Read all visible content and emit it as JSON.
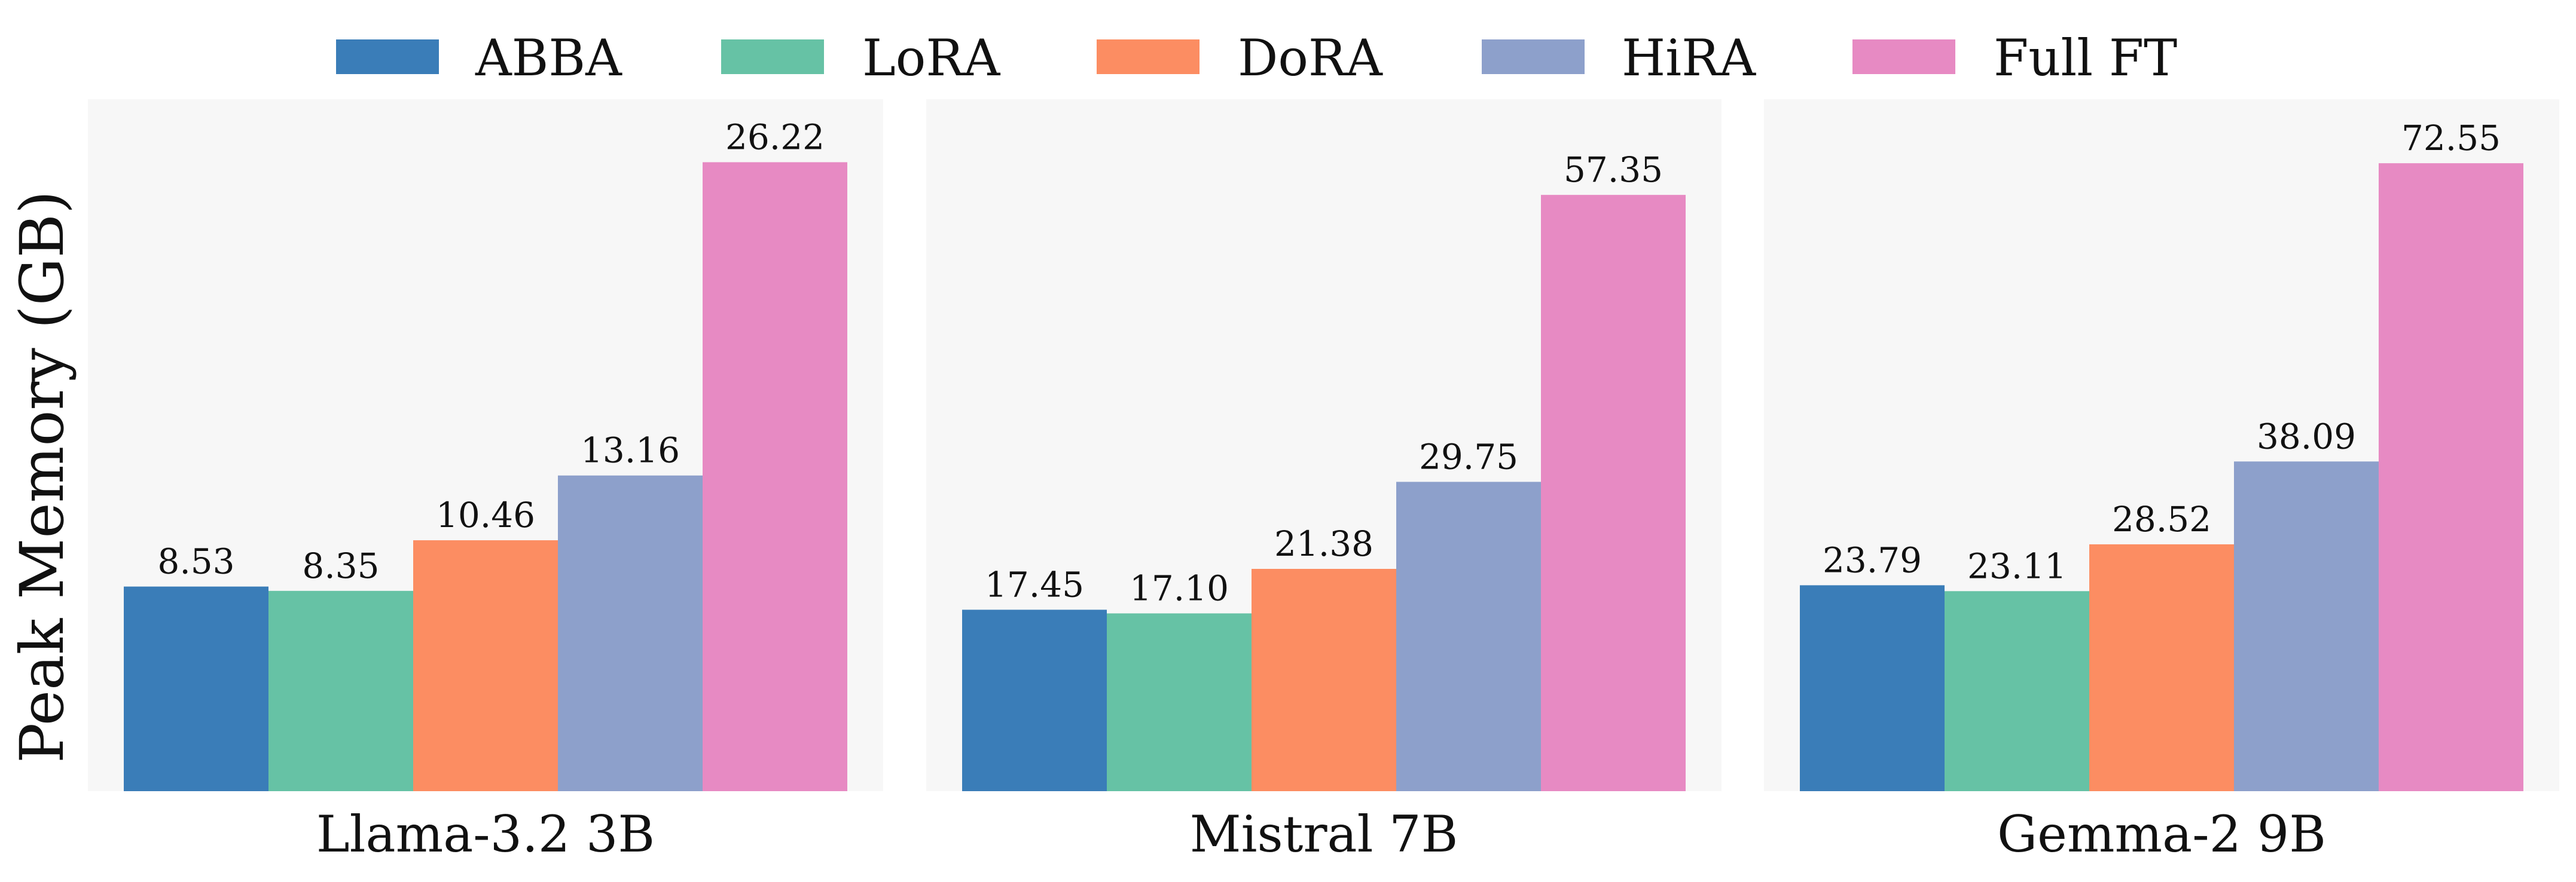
{
  "chart_data": [
    {
      "type": "bar",
      "xlabel": "Llama-3.2 3B",
      "categories": [
        "ABBA",
        "LoRA",
        "DoRA",
        "HiRA",
        "Full FT"
      ],
      "values": [
        8.53,
        8.35,
        10.46,
        13.16,
        26.22
      ],
      "value_labels": [
        "8.53",
        "8.35",
        "10.46",
        "13.16",
        "26.22"
      ],
      "ylim": [
        0,
        28.0
      ]
    },
    {
      "type": "bar",
      "xlabel": "Mistral 7B",
      "categories": [
        "ABBA",
        "LoRA",
        "DoRA",
        "HiRA",
        "Full FT"
      ],
      "values": [
        17.45,
        17.1,
        21.38,
        29.75,
        57.35
      ],
      "value_labels": [
        "17.45",
        "17.10",
        "21.38",
        "29.75",
        "57.35"
      ],
      "ylim": [
        0,
        64.6
      ]
    },
    {
      "type": "bar",
      "xlabel": "Gemma-2 9B",
      "categories": [
        "ABBA",
        "LoRA",
        "DoRA",
        "HiRA",
        "Full FT"
      ],
      "values": [
        23.79,
        23.11,
        28.52,
        38.09,
        72.55
      ],
      "value_labels": [
        "23.79",
        "23.11",
        "28.52",
        "38.09",
        "72.55"
      ],
      "ylim": [
        0,
        77.6
      ]
    }
  ],
  "ylabel": "Peak Memory (GB)",
  "legend": {
    "position": "top-center",
    "entries": [
      {
        "label": "ABBA",
        "color": "#3a7db8"
      },
      {
        "label": "LoRA",
        "color": "#66c2a5"
      },
      {
        "label": "DoRA",
        "color": "#fc8d62"
      },
      {
        "label": "HiRA",
        "color": "#8da0cb"
      },
      {
        "label": "Full FT",
        "color": "#e78ac3"
      }
    ]
  },
  "grid": false,
  "panel_background": "#f7f7f7"
}
